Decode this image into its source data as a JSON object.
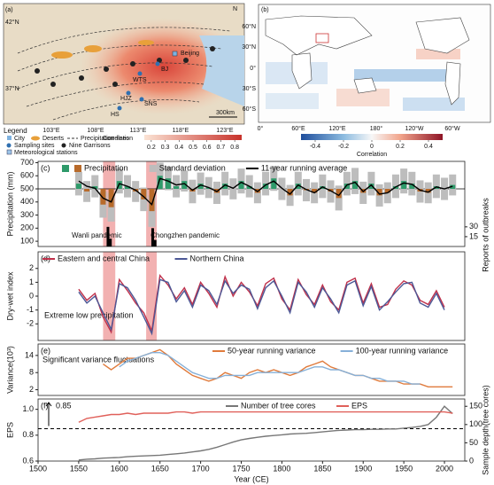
{
  "maps": {
    "a": {
      "label": "(a)",
      "lat_labels": [
        "42°N",
        "37°N"
      ],
      "lon_labels": [
        "103°E",
        "108°E",
        "113°E",
        "118°E",
        "123°E"
      ],
      "places": [
        "Beijing",
        "BJ",
        "WTS",
        "HJZ",
        "SNS",
        "HS"
      ],
      "scale": "300km",
      "north": "N",
      "legend": {
        "title": "Legend",
        "items": [
          "City",
          "Deserts",
          "Precipitation lines",
          "Sampling sites",
          "Nine Garrisons",
          "Meteorological stations"
        ]
      },
      "colorbar": {
        "label": "Correlation",
        "lim": [
          0.15,
          0.85
        ],
        "ticks": [
          0.2,
          0.3,
          0.4,
          0.5,
          0.6,
          0.7,
          0.8
        ]
      }
    },
    "b": {
      "label": "(b)",
      "lat_labels": [
        "60°N",
        "30°N",
        "0°",
        "30°S",
        "60°S"
      ],
      "lon_labels": [
        "0°",
        "60°E",
        "120°E",
        "180°",
        "120°W",
        "60°W"
      ],
      "colorbar": {
        "label": "Correlation",
        "lim": [
          -0.5,
          0.5
        ],
        "ticks": [
          -0.4,
          -0.2,
          0,
          0.2,
          0.4
        ]
      }
    }
  },
  "chart_data": [
    {
      "type": "bar",
      "label": "(c)",
      "ylabel": "Precipitation (mm)",
      "y2label": "Reports of outbreaks",
      "xlim": [
        1500,
        2025
      ],
      "ylim": [
        60,
        710
      ],
      "yticks": [
        100,
        200,
        300,
        400,
        500,
        600,
        700
      ],
      "y2lim": [
        0,
        130
      ],
      "y2ticks": [
        15,
        30
      ],
      "baseline": 500,
      "x": [
        1550,
        1560,
        1570,
        1580,
        1590,
        1600,
        1610,
        1620,
        1630,
        1640,
        1650,
        1660,
        1670,
        1680,
        1690,
        1700,
        1710,
        1720,
        1730,
        1740,
        1750,
        1760,
        1770,
        1780,
        1790,
        1800,
        1810,
        1820,
        1830,
        1840,
        1850,
        1860,
        1870,
        1880,
        1890,
        1900,
        1910,
        1920,
        1930,
        1940,
        1950,
        1960,
        1970,
        1980,
        1990,
        2000,
        2010
      ],
      "shaded": [
        {
          "from": 1580,
          "to": 1595,
          "label": "Wanli pandemic"
        },
        {
          "from": 1633,
          "to": 1646,
          "label": "Chongzhen pandemic"
        }
      ],
      "shade_color": "#f0a3a3",
      "series": [
        {
          "name": "Precipitation",
          "type": "bar",
          "color": "#2e9a6a",
          "color_below": "#b86a2a",
          "values": [
            540,
            480,
            520,
            380,
            360,
            560,
            520,
            480,
            420,
            330,
            600,
            580,
            520,
            560,
            480,
            540,
            510,
            470,
            540,
            500,
            560,
            520,
            470,
            540,
            580,
            500,
            450,
            540,
            490,
            470,
            520,
            480,
            430,
            540,
            560,
            470,
            540,
            450,
            470,
            520,
            560,
            540,
            480,
            470,
            520,
            500,
            530
          ]
        },
        {
          "name": "Standard deviation",
          "type": "range",
          "color": "#bdbdbd",
          "values": [
            90,
            80,
            85,
            100,
            110,
            95,
            85,
            80,
            90,
            120,
            100,
            90,
            85,
            80,
            90,
            85,
            80,
            85,
            90,
            80,
            95,
            85,
            80,
            90,
            95,
            85,
            80,
            90,
            85,
            80,
            90,
            85,
            95,
            90,
            100,
            85,
            90,
            85,
            80,
            90,
            95,
            90,
            85,
            80,
            90,
            85,
            80
          ]
        },
        {
          "name": "11-year running average",
          "type": "line",
          "color": "#000000",
          "values": [
            560,
            520,
            505,
            430,
            400,
            540,
            520,
            490,
            440,
            380,
            580,
            560,
            530,
            540,
            490,
            530,
            510,
            480,
            530,
            505,
            550,
            520,
            480,
            530,
            560,
            505,
            460,
            530,
            495,
            470,
            515,
            485,
            450,
            530,
            550,
            480,
            530,
            460,
            470,
            515,
            545,
            535,
            490,
            475,
            515,
            500,
            520
          ]
        },
        {
          "type": "bar",
          "axis": "y2",
          "color": "#000000",
          "x": [
            1586,
            1589,
            1641,
            1644
          ],
          "values": [
            30,
            12,
            28,
            10
          ]
        }
      ]
    },
    {
      "type": "line",
      "label": "(d)",
      "ylabel": "Dry-wet index",
      "xlim": [
        1500,
        2025
      ],
      "ylim": [
        -3.2,
        3.2
      ],
      "yticks": [
        -2,
        -1,
        0,
        1,
        2
      ],
      "annotations": [
        "Extreme low precipitation"
      ],
      "x": [
        1550,
        1560,
        1570,
        1580,
        1590,
        1600,
        1610,
        1620,
        1630,
        1640,
        1650,
        1660,
        1670,
        1680,
        1690,
        1700,
        1710,
        1720,
        1730,
        1740,
        1750,
        1760,
        1770,
        1780,
        1790,
        1800,
        1810,
        1820,
        1830,
        1840,
        1850,
        1860,
        1870,
        1880,
        1890,
        1900,
        1910,
        1920,
        1930,
        1940,
        1950,
        1960,
        1970,
        1980,
        1990,
        2000,
        2010
      ],
      "series": [
        {
          "name": "Eastern and central China",
          "type": "line",
          "color": "#c0304a",
          "values": [
            0.5,
            -0.3,
            0.2,
            -1.5,
            -2.6,
            1.2,
            0.4,
            -0.5,
            -1.2,
            -2.5,
            1.5,
            0.8,
            -0.2,
            0.6,
            -0.6,
            1.0,
            0.2,
            -0.8,
            1.4,
            0.0,
            1.0,
            0.3,
            -0.7,
            0.9,
            1.3,
            -0.2,
            -1.0,
            1.2,
            0.1,
            -0.6,
            0.8,
            -0.4,
            -1.0,
            1.0,
            1.3,
            -0.5,
            0.9,
            -0.8,
            -0.6,
            0.5,
            1.1,
            0.8,
            -0.3,
            -0.6,
            0.4,
            -0.8,
            null
          ]
        },
        {
          "name": "Northern China",
          "type": "line",
          "color": "#4c5896",
          "values": [
            0.3,
            -0.5,
            0.0,
            -1.2,
            -2.4,
            0.9,
            0.6,
            -0.3,
            -1.5,
            -2.7,
            1.2,
            1.0,
            -0.4,
            0.4,
            -0.8,
            0.8,
            0.4,
            -0.6,
            1.1,
            0.2,
            0.8,
            0.5,
            -0.9,
            0.6,
            1.1,
            0.0,
            -1.2,
            1.0,
            0.3,
            -0.8,
            0.6,
            -0.2,
            -1.2,
            0.8,
            1.1,
            -0.7,
            0.7,
            -1.0,
            -0.4,
            0.3,
            0.9,
            1.0,
            -0.5,
            -0.8,
            0.2,
            -1.0,
            null
          ]
        }
      ]
    },
    {
      "type": "line",
      "label": "(e)",
      "ylabel": "Variance(10³)",
      "xlim": [
        1500,
        2025
      ],
      "ylim": [
        0,
        18
      ],
      "yticks": [
        2,
        8,
        14
      ],
      "annotations": [
        "Significant variance fluctuations"
      ],
      "x": [
        1550,
        1560,
        1570,
        1580,
        1590,
        1600,
        1610,
        1620,
        1630,
        1640,
        1650,
        1660,
        1670,
        1680,
        1690,
        1700,
        1710,
        1720,
        1730,
        1740,
        1750,
        1760,
        1770,
        1780,
        1790,
        1800,
        1810,
        1820,
        1830,
        1840,
        1850,
        1860,
        1870,
        1880,
        1890,
        1900,
        1910,
        1920,
        1930,
        1940,
        1950,
        1960,
        1970,
        1980,
        1990,
        2000,
        2010
      ],
      "series": [
        {
          "name": "50-year running variance",
          "type": "line",
          "color": "#e07b3c",
          "values": [
            null,
            null,
            null,
            11,
            9,
            11,
            13,
            13,
            14,
            15,
            16,
            14,
            11,
            9,
            7,
            6,
            5,
            6,
            8,
            7,
            6,
            8,
            9,
            8,
            9,
            8,
            7,
            8,
            10,
            11,
            12,
            10,
            9,
            8,
            7,
            7,
            6,
            5,
            5,
            5,
            4,
            4,
            4,
            3,
            3,
            3,
            3
          ]
        },
        {
          "name": "100-year running variance",
          "type": "line",
          "color": "#86b0d8",
          "values": [
            null,
            null,
            null,
            null,
            null,
            10,
            12,
            13,
            14,
            15,
            15,
            14,
            12,
            10,
            8,
            7,
            6,
            6,
            7,
            7,
            7,
            7,
            8,
            8,
            8,
            8,
            8,
            8,
            9,
            10,
            10,
            9,
            9,
            8,
            7,
            7,
            6,
            6,
            5,
            5,
            5,
            4,
            4,
            null,
            null,
            null,
            null
          ]
        }
      ]
    },
    {
      "type": "line",
      "label": "(f)",
      "ylabel": "EPS",
      "y2label": "Sample depth(tree cores)",
      "xlabel": "Year (CE)",
      "xlim": [
        1500,
        2025
      ],
      "xticks": [
        1500,
        1550,
        1600,
        1650,
        1700,
        1750,
        1800,
        1850,
        1900,
        1950,
        2000
      ],
      "ylim": [
        0.6,
        1.08
      ],
      "yticks": [
        0.6,
        0.8,
        {
          "value": 1,
          "label": "1.0"
        }
      ],
      "y2lim": [
        0,
        170
      ],
      "y2ticks": [
        0,
        50,
        100,
        150
      ],
      "hline": 0.85,
      "x": [
        1550,
        1560,
        1570,
        1580,
        1590,
        1600,
        1610,
        1620,
        1630,
        1640,
        1650,
        1660,
        1670,
        1680,
        1690,
        1700,
        1710,
        1720,
        1730,
        1740,
        1750,
        1760,
        1770,
        1780,
        1790,
        1800,
        1810,
        1820,
        1830,
        1840,
        1850,
        1860,
        1870,
        1880,
        1890,
        1900,
        1910,
        1920,
        1930,
        1940,
        1950,
        1960,
        1970,
        1980,
        1990,
        2000,
        2010
      ],
      "series": [
        {
          "name": "Number of tree cores",
          "type": "line",
          "axis": "y2",
          "color": "#777777",
          "values": [
            3,
            5,
            6,
            8,
            9,
            10,
            12,
            13,
            14,
            15,
            16,
            18,
            20,
            22,
            25,
            28,
            32,
            38,
            45,
            52,
            58,
            62,
            65,
            68,
            70,
            72,
            74,
            75,
            76,
            78,
            80,
            82,
            84,
            85,
            86,
            86,
            87,
            87,
            88,
            88,
            90,
            92,
            95,
            100,
            120,
            150,
            130
          ]
        },
        {
          "name": "EPS",
          "type": "line",
          "color": "#e0605a",
          "values": [
            0.9,
            0.93,
            0.94,
            0.95,
            0.96,
            0.96,
            0.97,
            0.96,
            0.97,
            0.97,
            0.97,
            0.97,
            0.98,
            0.98,
            0.97,
            0.98,
            0.98,
            0.98,
            0.98,
            0.98,
            0.98,
            0.98,
            0.98,
            0.98,
            0.98,
            0.98,
            0.98,
            0.98,
            0.98,
            0.98,
            0.98,
            0.98,
            0.98,
            0.98,
            0.98,
            0.98,
            0.98,
            0.98,
            0.98,
            0.98,
            0.98,
            0.98,
            0.98,
            0.98,
            0.98,
            0.98,
            0.97
          ]
        }
      ]
    }
  ]
}
